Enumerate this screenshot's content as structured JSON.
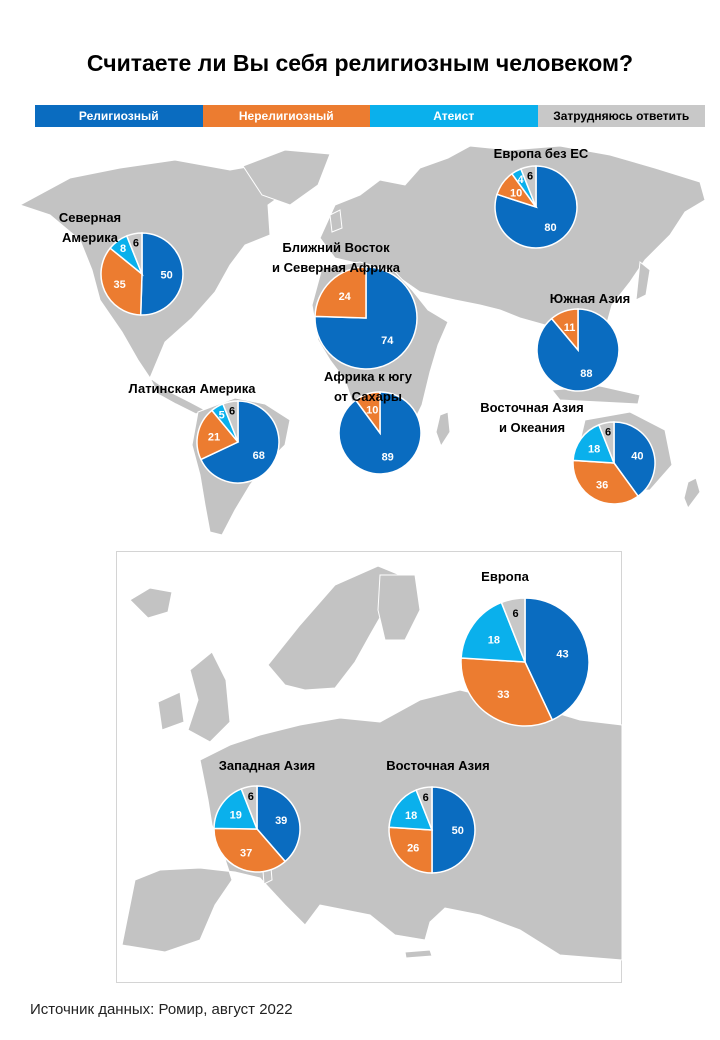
{
  "title": "Считаете ли Вы себя религиозным человеком?",
  "source": "Источник данных: Ромир, август 2022",
  "colors": {
    "religious": "#0a6cc0",
    "nonreligious": "#ec7c30",
    "atheist": "#0ab0ec",
    "undecided": "#c8c8c8",
    "map": "#c3c3c3"
  },
  "chart_data": {
    "type": "pie",
    "title": "Считаете ли Вы себя религиозным человеком?",
    "legend": [
      "Религиозный",
      "Нерелигиозный",
      "Атеист",
      "Затрудняюсь ответить"
    ],
    "legend_position": "top",
    "regions": [
      {
        "name": "Северная Америка",
        "values": [
          50,
          35,
          8,
          6
        ]
      },
      {
        "name": "Европа без ЕС",
        "values": [
          80,
          10,
          4,
          6
        ]
      },
      {
        "name": "Ближний Восток и Северная Африка",
        "values": [
          74,
          24,
          0,
          0
        ]
      },
      {
        "name": "Южная Азия",
        "values": [
          88,
          11,
          0,
          0
        ]
      },
      {
        "name": "Латинская Америка",
        "values": [
          68,
          21,
          5,
          6
        ]
      },
      {
        "name": "Африка к югу от Сахары",
        "values": [
          89,
          10,
          0,
          0
        ]
      },
      {
        "name": "Восточная Азия и Океания",
        "values": [
          40,
          36,
          18,
          6
        ]
      },
      {
        "name": "Европа",
        "values": [
          43,
          33,
          18,
          6
        ]
      },
      {
        "name": "Западная Азия",
        "values": [
          39,
          37,
          19,
          6
        ]
      },
      {
        "name": "Восточная Азия",
        "values": [
          50,
          26,
          18,
          6
        ]
      }
    ]
  }
}
